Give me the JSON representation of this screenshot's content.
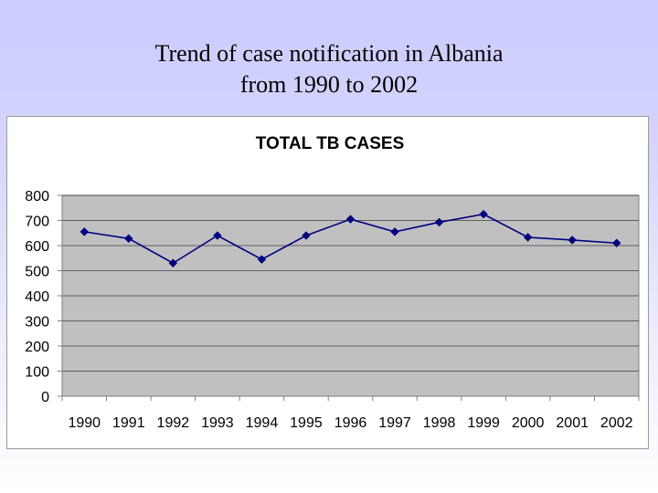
{
  "slide": {
    "title_line1": "Trend of case notification in Albania",
    "title_line2": "from 1990 to 2002"
  },
  "chart_data": {
    "type": "line",
    "title": "TOTAL TB CASES",
    "xlabel": "",
    "ylabel": "",
    "categories": [
      "1990",
      "1991",
      "1992",
      "1993",
      "1994",
      "1995",
      "1996",
      "1997",
      "1998",
      "1999",
      "2000",
      "2001",
      "2002"
    ],
    "series": [
      {
        "values": [
          655,
          628,
          530,
          640,
          545,
          640,
          705,
          655,
          693,
          725,
          633,
          622,
          610
        ]
      }
    ],
    "ylim": [
      0,
      800
    ],
    "ytick_step": 100,
    "grid": true,
    "legend": "none",
    "colors": {
      "line": "#000080",
      "marker": "#000080",
      "plot_background": "#c0c0c0",
      "gridline": "#000000"
    }
  }
}
